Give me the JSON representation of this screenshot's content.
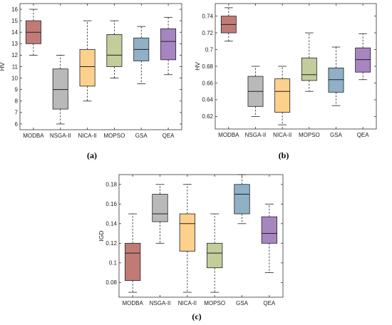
{
  "figure": {
    "panel_labels": [
      "(a)",
      "(b)",
      "(c)"
    ]
  },
  "chart_data": [
    {
      "type": "box",
      "panel": "(a)",
      "ylabel": "HV",
      "ylim": [
        5.5,
        16.5
      ],
      "yticks": [
        6,
        7,
        8,
        9,
        10,
        11,
        12,
        13,
        14,
        15,
        16
      ],
      "ytick_labels": [
        "6",
        "7",
        "8",
        "9",
        "10",
        "11",
        "12",
        "13",
        "14",
        "15",
        "16"
      ],
      "categories": [
        "MODBA",
        "NSGA-II",
        "NICA-II",
        "MOPSO",
        "GSA",
        "QEA"
      ],
      "colors": [
        "#c17b77",
        "#b9b9b9",
        "#fdd08c",
        "#c3cc9b",
        "#8fb0c6",
        "#a785c1"
      ],
      "boxes": [
        {
          "min": 12.0,
          "q1": 13.0,
          "median": 14.0,
          "q3": 15.0,
          "max": 16.0
        },
        {
          "min": 6.0,
          "q1": 7.3,
          "median": 9.0,
          "q3": 10.8,
          "max": 12.0
        },
        {
          "min": 8.0,
          "q1": 9.3,
          "median": 11.0,
          "q3": 12.5,
          "max": 15.0
        },
        {
          "min": 10.0,
          "q1": 11.0,
          "median": 12.0,
          "q3": 13.8,
          "max": 15.0
        },
        {
          "min": 9.5,
          "q1": 11.5,
          "median": 12.5,
          "q3": 13.5,
          "max": 14.5
        },
        {
          "min": 10.3,
          "q1": 11.6,
          "median": 13.2,
          "q3": 14.3,
          "max": 15.3
        }
      ],
      "grid": false
    },
    {
      "type": "box",
      "panel": "(b)",
      "ylabel": "HV",
      "ylim": [
        0.605,
        0.755
      ],
      "yticks": [
        0.62,
        0.64,
        0.66,
        0.68,
        0.7,
        0.72,
        0.74
      ],
      "ytick_labels": [
        "0.62",
        "0.64",
        "0.66",
        "0.68",
        "0.7",
        "0.72",
        "0.74"
      ],
      "categories": [
        "MODBA",
        "NSGA-II",
        "NICA-II",
        "MOPSO",
        "GSA",
        "QEA"
      ],
      "colors": [
        "#c17b77",
        "#b9b9b9",
        "#fdd08c",
        "#c3cc9b",
        "#8fb0c6",
        "#a785c1"
      ],
      "boxes": [
        {
          "min": 0.71,
          "q1": 0.72,
          "median": 0.73,
          "q3": 0.74,
          "max": 0.75
        },
        {
          "min": 0.62,
          "q1": 0.632,
          "median": 0.65,
          "q3": 0.668,
          "max": 0.68
        },
        {
          "min": 0.61,
          "q1": 0.625,
          "median": 0.65,
          "q3": 0.665,
          "max": 0.68
        },
        {
          "min": 0.65,
          "q1": 0.663,
          "median": 0.67,
          "q3": 0.69,
          "max": 0.72
        },
        {
          "min": 0.633,
          "q1": 0.649,
          "median": 0.664,
          "q3": 0.678,
          "max": 0.703
        },
        {
          "min": 0.664,
          "q1": 0.673,
          "median": 0.688,
          "q3": 0.702,
          "max": 0.719
        }
      ],
      "grid": false
    },
    {
      "type": "box",
      "panel": "(c)",
      "ylabel": "IGD",
      "ylim": [
        0.065,
        0.19
      ],
      "yticks": [
        0.08,
        0.1,
        0.12,
        0.14,
        0.16,
        0.18
      ],
      "ytick_labels": [
        "0.08",
        "0.1",
        "0.12",
        "0.14",
        "0.16",
        "0.18"
      ],
      "categories": [
        "MODBA",
        "NSGA-II",
        "NICA-II",
        "MOPSO",
        "GSA",
        "QEA"
      ],
      "colors": [
        "#c17b77",
        "#b9b9b9",
        "#fdd08c",
        "#c3cc9b",
        "#8fb0c6",
        "#a785c1"
      ],
      "boxes": [
        {
          "min": 0.07,
          "q1": 0.082,
          "median": 0.11,
          "q3": 0.12,
          "max": 0.15
        },
        {
          "min": 0.12,
          "q1": 0.142,
          "median": 0.15,
          "q3": 0.17,
          "max": 0.18
        },
        {
          "min": 0.07,
          "q1": 0.112,
          "median": 0.14,
          "q3": 0.15,
          "max": 0.18
        },
        {
          "min": 0.07,
          "q1": 0.095,
          "median": 0.11,
          "q3": 0.12,
          "max": 0.15
        },
        {
          "min": 0.14,
          "q1": 0.15,
          "median": 0.17,
          "q3": 0.18,
          "max": 0.19
        },
        {
          "min": 0.09,
          "q1": 0.12,
          "median": 0.13,
          "q3": 0.147,
          "max": 0.16
        }
      ],
      "grid": false
    }
  ]
}
